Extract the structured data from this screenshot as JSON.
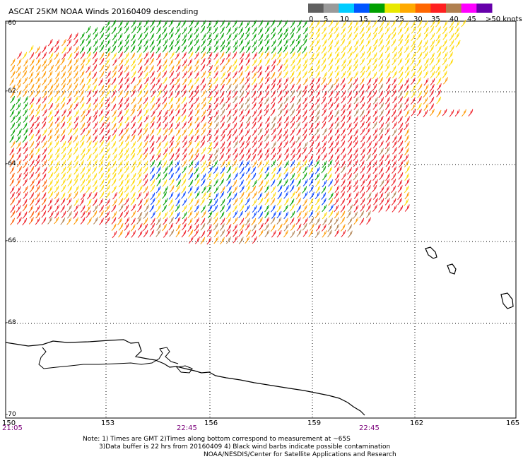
{
  "title": "ASCAT 25KM NOAA Winds 20160409 descending",
  "legend": {
    "labels": [
      "0",
      "5",
      "10",
      "15",
      "20",
      "25",
      "30",
      "35",
      "40",
      "45",
      ">50 knots"
    ],
    "colors": [
      "#606060",
      "#9a9a9a",
      "#00ccff",
      "#0055ff",
      "#00a000",
      "#e8e800",
      "#ffaa00",
      "#ff6600",
      "#ff2020",
      "#b08050",
      "#ff00ff",
      "#6600aa"
    ]
  },
  "latitude_labels": [
    "-60",
    "-62",
    "-64",
    "-66",
    "-68",
    "-70"
  ],
  "longitude_labels": [
    "150",
    "153",
    "156",
    "159",
    "162",
    "165"
  ],
  "time_labels": [
    "21:05",
    "22:45",
    "22:45"
  ],
  "notes": [
    "Note: 1) Times are GMT 2)Times along bottom correspond to measurement at ~65S",
    "3)Data buffer is 22 hrs from 20160409 4) Black wind barbs indicate possible contamination",
    "NOAA/NESDIS/Center for Satellite Applications and Research"
  ],
  "map": {
    "lat_range": [
      -70,
      -60
    ],
    "lon_range": [
      150,
      165
    ],
    "grid": "dotted",
    "features": [
      "wind-barbs",
      "coastline",
      "islands"
    ]
  }
}
